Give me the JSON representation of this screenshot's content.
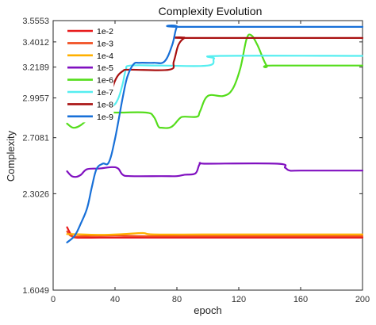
{
  "chart_data": {
    "type": "line",
    "title": "Complexity Evolution",
    "xlabel": "epoch",
    "ylabel": "Complexity",
    "xlim": [
      0,
      200
    ],
    "ylim": [
      1.6049,
      3.5553
    ],
    "xticks": [
      0,
      40,
      80,
      120,
      160,
      200
    ],
    "yticks": [
      1.6049,
      2.3026,
      2.7081,
      2.9957,
      3.2189,
      3.4012,
      3.5553
    ],
    "ytick_labels": [
      "1.6049",
      "2.3026",
      "2.7081",
      "2.9957",
      "3.2189",
      "3.4012",
      "3.5553"
    ],
    "grid": false,
    "legend_position": "top-left",
    "series": [
      {
        "name": "1e-2",
        "color": "#e8191a",
        "points": [
          [
            9,
            2.06
          ],
          [
            12,
            2.0
          ],
          [
            15,
            1.985
          ],
          [
            30,
            1.985
          ],
          [
            60,
            1.985
          ],
          [
            100,
            1.985
          ],
          [
            150,
            1.985
          ],
          [
            200,
            1.985
          ]
        ]
      },
      {
        "name": "1e-3",
        "color": "#f04a1c",
        "points": [
          [
            9,
            2.03
          ],
          [
            12,
            1.995
          ],
          [
            20,
            1.995
          ],
          [
            40,
            2.0
          ],
          [
            60,
            1.995
          ],
          [
            100,
            1.995
          ],
          [
            150,
            1.995
          ],
          [
            200,
            1.995
          ]
        ]
      },
      {
        "name": "1e-4",
        "color": "#ffb000",
        "points": [
          [
            9,
            2.01
          ],
          [
            12,
            2.01
          ],
          [
            30,
            2.005
          ],
          [
            45,
            2.01
          ],
          [
            58,
            2.018
          ],
          [
            65,
            2.008
          ],
          [
            100,
            2.008
          ],
          [
            150,
            2.008
          ],
          [
            200,
            2.008
          ]
        ]
      },
      {
        "name": "1e-5",
        "color": "#8010c0",
        "points": [
          [
            9,
            2.465
          ],
          [
            12,
            2.43
          ],
          [
            15,
            2.425
          ],
          [
            18,
            2.44
          ],
          [
            22,
            2.48
          ],
          [
            30,
            2.485
          ],
          [
            38,
            2.495
          ],
          [
            42,
            2.485
          ],
          [
            45,
            2.44
          ],
          [
            50,
            2.43
          ],
          [
            70,
            2.43
          ],
          [
            80,
            2.43
          ],
          [
            85,
            2.44
          ],
          [
            92,
            2.45
          ],
          [
            95,
            2.52
          ],
          [
            100,
            2.52
          ],
          [
            145,
            2.52
          ],
          [
            150,
            2.49
          ],
          [
            153,
            2.47
          ],
          [
            160,
            2.47
          ],
          [
            200,
            2.47
          ]
        ]
      },
      {
        "name": "1e-6",
        "color": "#55dd1c",
        "points": [
          [
            9,
            2.81
          ],
          [
            13,
            2.78
          ],
          [
            18,
            2.8
          ],
          [
            25,
            2.87
          ],
          [
            30,
            2.93
          ],
          [
            35,
            2.9
          ],
          [
            40,
            2.89
          ],
          [
            60,
            2.89
          ],
          [
            65,
            2.86
          ],
          [
            68,
            2.79
          ],
          [
            70,
            2.78
          ],
          [
            75,
            2.78
          ],
          [
            78,
            2.8
          ],
          [
            82,
            2.85
          ],
          [
            85,
            2.86
          ],
          [
            93,
            2.86
          ],
          [
            95,
            2.9
          ],
          [
            100,
            3.01
          ],
          [
            110,
            3.01
          ],
          [
            116,
            3.06
          ],
          [
            121,
            3.21
          ],
          [
            125,
            3.42
          ],
          [
            128,
            3.45
          ],
          [
            132,
            3.38
          ],
          [
            138,
            3.23
          ],
          [
            142,
            3.23
          ],
          [
            200,
            3.23
          ]
        ]
      },
      {
        "name": "1e-7",
        "color": "#55eef0",
        "points": [
          [
            9,
            2.88
          ],
          [
            15,
            2.88
          ],
          [
            20,
            2.89
          ],
          [
            25,
            2.93
          ],
          [
            30,
            2.935
          ],
          [
            38,
            2.935
          ],
          [
            42,
            2.99
          ],
          [
            45,
            3.1
          ],
          [
            47,
            3.2
          ],
          [
            50,
            3.23
          ],
          [
            70,
            3.23
          ],
          [
            100,
            3.23
          ],
          [
            104,
            3.28
          ],
          [
            108,
            3.3
          ],
          [
            200,
            3.3
          ]
        ]
      },
      {
        "name": "1e-8",
        "color": "#a81010",
        "points": [
          [
            9,
            3.02
          ],
          [
            11,
            2.89
          ],
          [
            14,
            2.85
          ],
          [
            22,
            2.86
          ],
          [
            30,
            2.89
          ],
          [
            35,
            2.94
          ],
          [
            40,
            3.12
          ],
          [
            45,
            3.19
          ],
          [
            50,
            3.2
          ],
          [
            75,
            3.2
          ],
          [
            78,
            3.26
          ],
          [
            81,
            3.38
          ],
          [
            85,
            3.43
          ],
          [
            88,
            3.43
          ],
          [
            200,
            3.43
          ]
        ]
      },
      {
        "name": "1e-9",
        "color": "#1870d8",
        "points": [
          [
            9,
            1.95
          ],
          [
            14,
            2.0
          ],
          [
            18,
            2.09
          ],
          [
            22,
            2.2
          ],
          [
            25,
            2.35
          ],
          [
            28,
            2.48
          ],
          [
            32,
            2.52
          ],
          [
            36,
            2.53
          ],
          [
            40,
            2.7
          ],
          [
            45,
            3.0
          ],
          [
            48,
            3.15
          ],
          [
            52,
            3.24
          ],
          [
            56,
            3.25
          ],
          [
            65,
            3.25
          ],
          [
            72,
            3.26
          ],
          [
            77,
            3.38
          ],
          [
            80,
            3.51
          ],
          [
            84,
            3.51
          ],
          [
            200,
            3.51
          ]
        ]
      }
    ]
  }
}
